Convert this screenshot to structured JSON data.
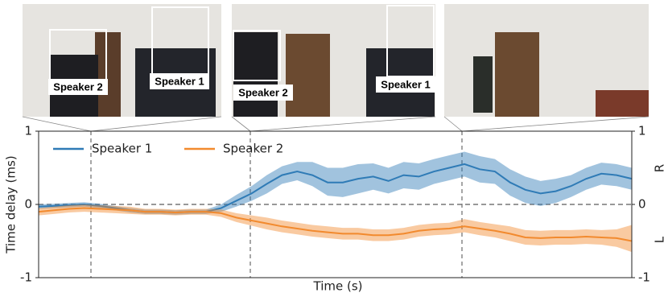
{
  "chart_data": {
    "type": "line",
    "xlabel": "Time (s)",
    "ylabel": "Time delay (ms)",
    "ylim": [
      -1,
      1
    ],
    "yticks": [
      -1,
      0,
      1
    ],
    "y2lim": [
      -1,
      1
    ],
    "y2ticks": [
      -1,
      0,
      1
    ],
    "side_labels": [
      "R",
      "L"
    ],
    "photo_labels": [
      "Speaker 2",
      "Speaker 1",
      "Speaker 2",
      "Speaker 1"
    ],
    "legend": "upper left",
    "series": [
      {
        "name": "Speaker 1",
        "color": "#2f7bb6",
        "values": [
          -0.03,
          -0.02,
          -0.01,
          0.0,
          -0.02,
          -0.05,
          -0.08,
          -0.1,
          -0.1,
          -0.11,
          -0.1,
          -0.1,
          -0.05,
          0.05,
          0.15,
          0.28,
          0.4,
          0.45,
          0.4,
          0.3,
          0.3,
          0.35,
          0.38,
          0.32,
          0.4,
          0.38,
          0.45,
          0.5,
          0.55,
          0.48,
          0.45,
          0.3,
          0.2,
          0.15,
          0.18,
          0.25,
          0.35,
          0.42,
          0.4,
          0.35
        ],
        "lower": [
          -0.06,
          -0.05,
          -0.04,
          -0.03,
          -0.05,
          -0.08,
          -0.11,
          -0.13,
          -0.13,
          -0.14,
          -0.13,
          -0.13,
          -0.1,
          -0.03,
          0.05,
          0.15,
          0.28,
          0.33,
          0.25,
          0.12,
          0.1,
          0.15,
          0.2,
          0.15,
          0.22,
          0.2,
          0.28,
          0.33,
          0.38,
          0.3,
          0.28,
          0.12,
          0.02,
          -0.02,
          0.02,
          0.1,
          0.2,
          0.27,
          0.25,
          0.2
        ],
        "upper": [
          0.0,
          0.01,
          0.02,
          0.03,
          0.01,
          -0.02,
          -0.05,
          -0.07,
          -0.07,
          -0.08,
          -0.07,
          -0.07,
          0.0,
          0.13,
          0.25,
          0.4,
          0.52,
          0.58,
          0.58,
          0.5,
          0.5,
          0.55,
          0.56,
          0.5,
          0.58,
          0.56,
          0.62,
          0.67,
          0.72,
          0.66,
          0.62,
          0.48,
          0.38,
          0.32,
          0.35,
          0.4,
          0.5,
          0.57,
          0.55,
          0.5
        ]
      },
      {
        "name": "Speaker 2",
        "color": "#f28a2e",
        "values": [
          -0.1,
          -0.08,
          -0.06,
          -0.05,
          -0.06,
          -0.07,
          -0.08,
          -0.1,
          -0.1,
          -0.11,
          -0.1,
          -0.1,
          -0.12,
          -0.18,
          -0.22,
          -0.26,
          -0.3,
          -0.33,
          -0.36,
          -0.38,
          -0.4,
          -0.4,
          -0.42,
          -0.42,
          -0.4,
          -0.36,
          -0.34,
          -0.33,
          -0.3,
          -0.33,
          -0.36,
          -0.4,
          -0.45,
          -0.46,
          -0.45,
          -0.45,
          -0.44,
          -0.45,
          -0.46,
          -0.5
        ],
        "lower": [
          -0.15,
          -0.13,
          -0.11,
          -0.1,
          -0.11,
          -0.12,
          -0.13,
          -0.14,
          -0.14,
          -0.15,
          -0.14,
          -0.14,
          -0.17,
          -0.24,
          -0.29,
          -0.34,
          -0.38,
          -0.41,
          -0.44,
          -0.46,
          -0.48,
          -0.48,
          -0.5,
          -0.5,
          -0.48,
          -0.44,
          -0.42,
          -0.41,
          -0.38,
          -0.42,
          -0.45,
          -0.5,
          -0.55,
          -0.56,
          -0.55,
          -0.55,
          -0.54,
          -0.55,
          -0.58,
          -0.65
        ],
        "upper": [
          -0.05,
          -0.03,
          -0.01,
          0.0,
          -0.01,
          -0.02,
          -0.03,
          -0.06,
          -0.06,
          -0.07,
          -0.06,
          -0.06,
          -0.07,
          -0.12,
          -0.15,
          -0.18,
          -0.22,
          -0.25,
          -0.28,
          -0.3,
          -0.32,
          -0.32,
          -0.34,
          -0.34,
          -0.32,
          -0.28,
          -0.26,
          -0.25,
          -0.2,
          -0.24,
          -0.27,
          -0.3,
          -0.35,
          -0.36,
          -0.35,
          -0.35,
          -0.34,
          -0.35,
          -0.34,
          -0.28
        ]
      }
    ]
  }
}
